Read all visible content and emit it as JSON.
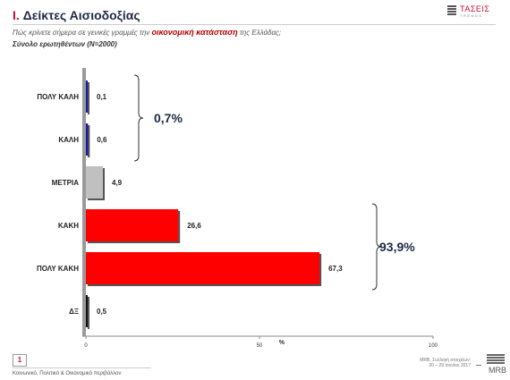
{
  "header": {
    "number": "I.",
    "title": "Δείκτες Αισιοδοξίας",
    "question_pre": "Πώς κρίνετε σήμερα σε γενικές γραμμές την ",
    "question_highlight": "οικονομική κατάσταση",
    "question_post": " της Ελλάδας;",
    "base": "Σύνολο ερωτηθέντων (N=2000)",
    "logo_name": "ΤΑΣΕΙΣ",
    "logo_sub": "TRENDS"
  },
  "chart_data": {
    "type": "bar",
    "orientation": "horizontal",
    "categories": [
      "ΠΟΛΥ ΚΑΛΗ",
      "ΚΑΛΗ",
      "ΜΕΤΡΙΑ",
      "ΚΑΚΗ",
      "ΠΟΛΥ ΚΑΚΗ",
      "ΔΞ"
    ],
    "values": [
      0.1,
      0.6,
      4.9,
      26.6,
      67.3,
      0.5
    ],
    "value_labels": [
      "0,1",
      "0,6",
      "4,9",
      "26,6",
      "67,3",
      "0,5"
    ],
    "colors": [
      "#1a1aa8",
      "#1a1aa8",
      "#c0c0c0",
      "#ff0000",
      "#ff0000",
      "#111111"
    ],
    "xlim": [
      0,
      100
    ],
    "xticks": [
      "0",
      "50",
      "100"
    ],
    "xlabel": "%",
    "grid": false,
    "groups": [
      {
        "label": "0,7%",
        "categories": [
          "ΠΟΛΥ ΚΑΛΗ",
          "ΚΑΛΗ"
        ]
      },
      {
        "label": "93,9%",
        "categories": [
          "ΚΑΚΗ",
          "ΠΟΛΥ ΚΑΚΗ"
        ]
      }
    ]
  },
  "footer": {
    "page": "1",
    "section": "Κοινωνικό, Πολιτικό & Οικονομικό περιβάλλον",
    "source_line1": "MRB, Συλλογή στοιχείων:",
    "source_line2": "20 – 29 Ιουνίου 2017",
    "logo": "MRB"
  }
}
